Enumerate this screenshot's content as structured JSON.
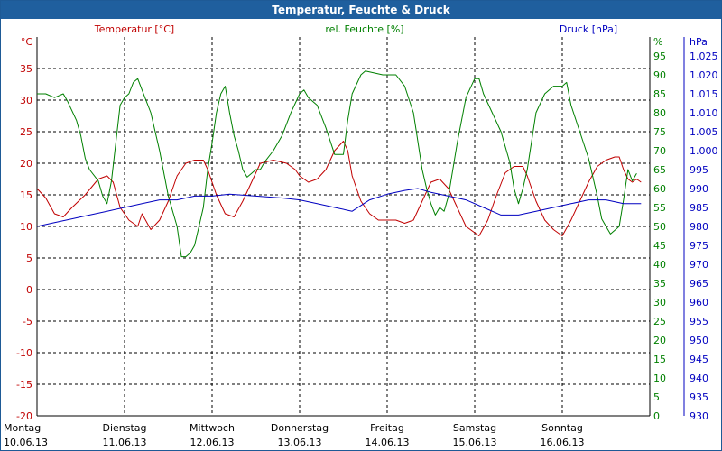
{
  "chart_data": {
    "type": "line",
    "title": "Temperatur, Feuchte & Druck",
    "colors": {
      "temp": "#c00000",
      "hum": "#008000",
      "press": "#0000c0",
      "title_bg": "#1f5f9e"
    },
    "grid": true,
    "x_range": [
      0,
      7
    ],
    "day_labels": [
      {
        "day": "Montag",
        "date": "10.06.13"
      },
      {
        "day": "Dienstag",
        "date": "11.06.13"
      },
      {
        "day": "Mittwoch",
        "date": "12.06.13"
      },
      {
        "day": "Donnerstag",
        "date": "13.06.13"
      },
      {
        "day": "Freitag",
        "date": "14.06.13"
      },
      {
        "day": "Samstag",
        "date": "15.06.13"
      },
      {
        "day": "Sonntag",
        "date": "16.06.13"
      }
    ],
    "axes": {
      "temp": {
        "legend": "Temperatur [°C]",
        "unit": "°C",
        "ylim": [
          -20,
          40
        ],
        "ticks": [
          "35",
          "30",
          "25",
          "20",
          "15",
          "10",
          "5",
          "0",
          "-5",
          "-10",
          "-15",
          "-20"
        ]
      },
      "hum": {
        "legend": "rel. Feuchte [%]",
        "unit": "%",
        "ylim": [
          0,
          100
        ],
        "ticks": [
          "95",
          "90",
          "85",
          "80",
          "75",
          "70",
          "65",
          "60",
          "55",
          "50",
          "45",
          "40",
          "35",
          "30",
          "25",
          "20",
          "15",
          "10",
          "5",
          "0"
        ]
      },
      "press": {
        "legend": "Druck [hPa]",
        "unit": "hPa",
        "ylim": [
          930,
          1030
        ],
        "ticks": [
          "1.025",
          "1.020",
          "1.015",
          "1.010",
          "1.005",
          "1.000",
          "995",
          "990",
          "985",
          "980",
          "975",
          "970",
          "965",
          "960",
          "955",
          "950",
          "945",
          "940",
          "935",
          "930"
        ]
      }
    },
    "series": [
      {
        "name": "Temperatur [°C]",
        "axis": "temp",
        "points": [
          [
            0,
            16
          ],
          [
            0.1,
            14.5
          ],
          [
            0.2,
            12
          ],
          [
            0.3,
            11.5
          ],
          [
            0.4,
            13
          ],
          [
            0.55,
            15
          ],
          [
            0.7,
            17.5
          ],
          [
            0.8,
            18
          ],
          [
            0.87,
            17
          ],
          [
            0.95,
            13
          ],
          [
            1.05,
            11
          ],
          [
            1.15,
            10
          ],
          [
            1.2,
            12
          ],
          [
            1.3,
            9.5
          ],
          [
            1.4,
            11
          ],
          [
            1.5,
            14
          ],
          [
            1.6,
            18
          ],
          [
            1.7,
            20
          ],
          [
            1.8,
            20.5
          ],
          [
            1.9,
            20.5
          ],
          [
            1.95,
            19
          ],
          [
            2.05,
            15
          ],
          [
            2.15,
            12
          ],
          [
            2.25,
            11.5
          ],
          [
            2.35,
            14
          ],
          [
            2.45,
            17
          ],
          [
            2.55,
            20
          ],
          [
            2.7,
            20.5
          ],
          [
            2.85,
            20
          ],
          [
            2.95,
            19
          ],
          [
            3.0,
            18
          ],
          [
            3.1,
            17
          ],
          [
            3.2,
            17.5
          ],
          [
            3.3,
            19
          ],
          [
            3.4,
            22
          ],
          [
            3.5,
            23.5
          ],
          [
            3.55,
            22
          ],
          [
            3.6,
            18
          ],
          [
            3.7,
            14
          ],
          [
            3.8,
            12
          ],
          [
            3.9,
            11
          ],
          [
            4.1,
            11
          ],
          [
            4.2,
            10.5
          ],
          [
            4.3,
            11
          ],
          [
            4.4,
            14
          ],
          [
            4.5,
            17
          ],
          [
            4.6,
            17.5
          ],
          [
            4.7,
            16
          ],
          [
            4.8,
            13
          ],
          [
            4.9,
            10
          ],
          [
            5.0,
            9
          ],
          [
            5.05,
            8.5
          ],
          [
            5.15,
            11
          ],
          [
            5.25,
            15
          ],
          [
            5.35,
            18.5
          ],
          [
            5.45,
            19.5
          ],
          [
            5.55,
            19.5
          ],
          [
            5.6,
            18
          ],
          [
            5.7,
            14
          ],
          [
            5.8,
            11
          ],
          [
            5.9,
            9.5
          ],
          [
            6.0,
            8.5
          ],
          [
            6.1,
            11
          ],
          [
            6.2,
            14
          ],
          [
            6.3,
            17
          ],
          [
            6.4,
            19.5
          ],
          [
            6.5,
            20.5
          ],
          [
            6.6,
            21
          ],
          [
            6.65,
            21
          ],
          [
            6.7,
            19
          ],
          [
            6.75,
            17.5
          ],
          [
            6.8,
            17
          ],
          [
            6.85,
            17.5
          ],
          [
            6.9,
            17
          ]
        ]
      },
      {
        "name": "rel. Feuchte [%]",
        "axis": "hum",
        "points": [
          [
            0,
            85
          ],
          [
            0.1,
            85
          ],
          [
            0.2,
            84
          ],
          [
            0.3,
            85
          ],
          [
            0.35,
            83
          ],
          [
            0.45,
            78
          ],
          [
            0.5,
            74
          ],
          [
            0.55,
            68
          ],
          [
            0.6,
            65
          ],
          [
            0.7,
            62
          ],
          [
            0.75,
            58
          ],
          [
            0.8,
            56
          ],
          [
            0.85,
            62
          ],
          [
            0.9,
            72
          ],
          [
            0.95,
            82
          ],
          [
            1.0,
            84
          ],
          [
            1.05,
            85
          ],
          [
            1.1,
            88
          ],
          [
            1.15,
            89
          ],
          [
            1.2,
            86
          ],
          [
            1.3,
            80
          ],
          [
            1.4,
            70
          ],
          [
            1.5,
            58
          ],
          [
            1.6,
            50
          ],
          [
            1.65,
            42
          ],
          [
            1.7,
            42
          ],
          [
            1.75,
            43
          ],
          [
            1.8,
            45
          ],
          [
            1.85,
            50
          ],
          [
            1.9,
            55
          ],
          [
            1.95,
            65
          ],
          [
            2.0,
            72
          ],
          [
            2.05,
            80
          ],
          [
            2.1,
            85
          ],
          [
            2.15,
            87
          ],
          [
            2.2,
            80
          ],
          [
            2.25,
            74
          ],
          [
            2.3,
            70
          ],
          [
            2.35,
            65
          ],
          [
            2.4,
            63
          ],
          [
            2.45,
            64
          ],
          [
            2.5,
            65
          ],
          [
            2.55,
            65
          ],
          [
            2.6,
            67
          ],
          [
            2.7,
            70
          ],
          [
            2.8,
            74
          ],
          [
            2.9,
            80
          ],
          [
            3.0,
            85
          ],
          [
            3.05,
            86
          ],
          [
            3.1,
            84
          ],
          [
            3.2,
            82
          ],
          [
            3.3,
            76
          ],
          [
            3.4,
            69
          ],
          [
            3.5,
            69
          ],
          [
            3.55,
            78
          ],
          [
            3.6,
            85
          ],
          [
            3.7,
            90
          ],
          [
            3.75,
            91
          ],
          [
            3.85,
            90.5
          ],
          [
            3.95,
            90
          ],
          [
            4.1,
            90
          ],
          [
            4.2,
            87
          ],
          [
            4.3,
            80
          ],
          [
            4.4,
            65
          ],
          [
            4.45,
            60
          ],
          [
            4.5,
            56
          ],
          [
            4.55,
            53
          ],
          [
            4.6,
            55
          ],
          [
            4.65,
            54
          ],
          [
            4.7,
            58
          ],
          [
            4.8,
            72
          ],
          [
            4.9,
            84
          ],
          [
            5.0,
            89
          ],
          [
            5.05,
            89
          ],
          [
            5.1,
            85
          ],
          [
            5.2,
            80
          ],
          [
            5.3,
            75
          ],
          [
            5.4,
            67
          ],
          [
            5.45,
            60
          ],
          [
            5.5,
            56
          ],
          [
            5.55,
            60
          ],
          [
            5.6,
            65
          ],
          [
            5.7,
            80
          ],
          [
            5.8,
            85
          ],
          [
            5.9,
            87
          ],
          [
            6.0,
            87
          ],
          [
            6.05,
            88
          ],
          [
            6.1,
            82
          ],
          [
            6.2,
            75
          ],
          [
            6.3,
            68
          ],
          [
            6.4,
            58
          ],
          [
            6.45,
            52
          ],
          [
            6.5,
            50
          ],
          [
            6.55,
            48
          ],
          [
            6.6,
            49
          ],
          [
            6.65,
            50
          ],
          [
            6.7,
            57
          ],
          [
            6.75,
            65
          ],
          [
            6.8,
            62
          ],
          [
            6.85,
            64
          ]
        ]
      },
      {
        "name": "Druck [hPa]",
        "axis": "press",
        "points": [
          [
            0,
            980
          ],
          [
            0.2,
            981
          ],
          [
            0.4,
            982
          ],
          [
            0.6,
            983
          ],
          [
            0.8,
            984
          ],
          [
            1.0,
            985
          ],
          [
            1.2,
            986
          ],
          [
            1.4,
            987
          ],
          [
            1.6,
            987
          ],
          [
            1.8,
            988
          ],
          [
            2.0,
            988
          ],
          [
            2.2,
            988.5
          ],
          [
            2.5,
            988
          ],
          [
            2.8,
            987.5
          ],
          [
            3.0,
            987
          ],
          [
            3.2,
            986
          ],
          [
            3.4,
            985
          ],
          [
            3.6,
            984
          ],
          [
            3.8,
            987
          ],
          [
            4.0,
            988.5
          ],
          [
            4.2,
            989.5
          ],
          [
            4.35,
            990
          ],
          [
            4.5,
            989
          ],
          [
            4.7,
            988
          ],
          [
            4.9,
            987
          ],
          [
            5.1,
            985
          ],
          [
            5.3,
            983
          ],
          [
            5.5,
            983
          ],
          [
            5.7,
            984
          ],
          [
            5.9,
            985
          ],
          [
            6.1,
            986
          ],
          [
            6.3,
            987
          ],
          [
            6.5,
            987
          ],
          [
            6.7,
            986
          ],
          [
            6.9,
            986
          ]
        ]
      }
    ]
  }
}
